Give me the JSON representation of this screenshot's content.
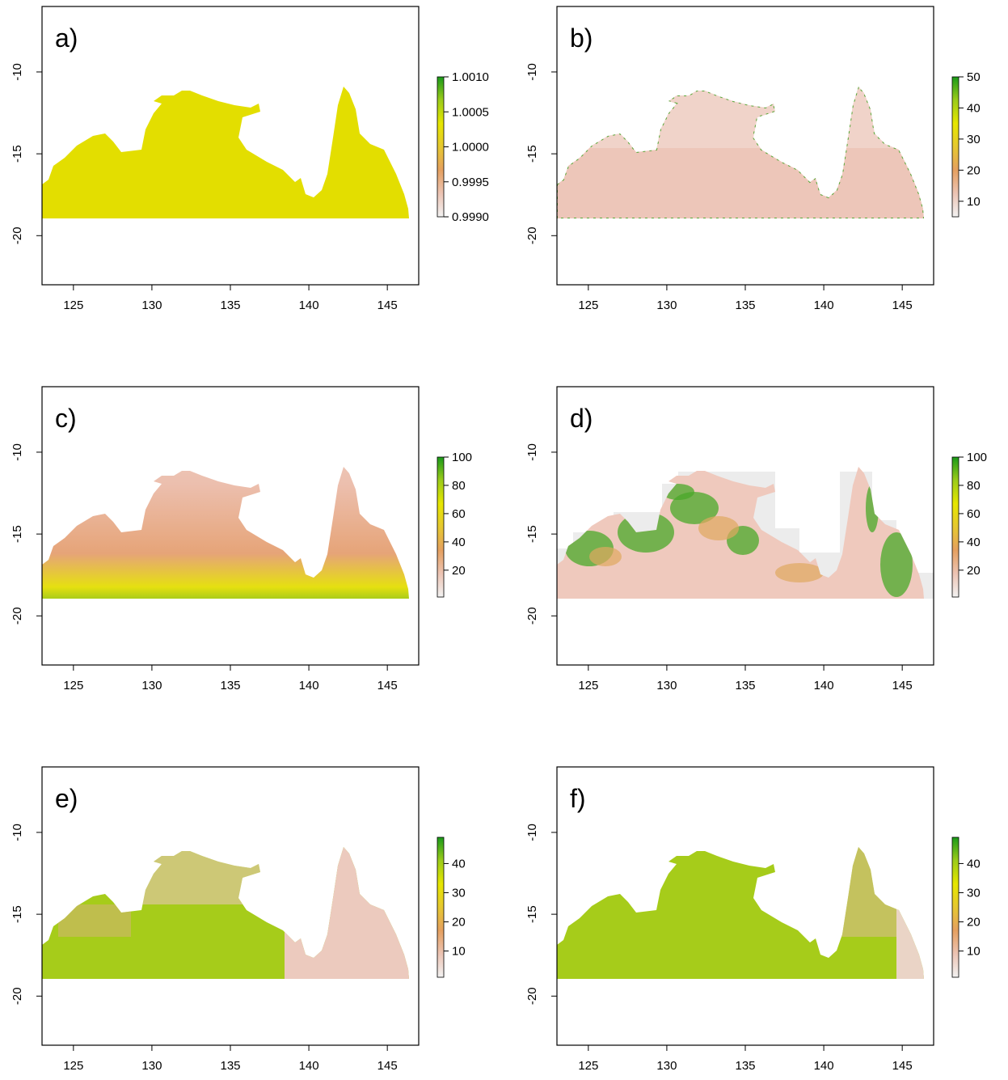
{
  "chart_data": [
    {
      "type": "map",
      "title": "a)",
      "xlim": [
        123,
        147
      ],
      "ylim": [
        -23,
        -6
      ],
      "xticks": [
        125,
        130,
        135,
        140,
        145
      ],
      "yticks": [
        -10,
        -15,
        -20
      ],
      "zlim": [
        0.999,
        1.001
      ],
      "zticks": [
        {
          "value": 0.999,
          "label": "0.9990"
        },
        {
          "value": 0.9995,
          "label": "0.9995"
        },
        {
          "value": 1,
          "label": "1.0000"
        },
        {
          "value": 1.0005,
          "label": "1.0005"
        },
        {
          "value": 1.001,
          "label": "1.0010"
        }
      ],
      "colors": [
        "#f2f2f2",
        "#ecc4b4",
        "#e5a060",
        "#e6c830",
        "#e6e600",
        "#9ccc1a",
        "#1a9a1a"
      ]
    },
    {
      "type": "map",
      "title": "b)",
      "xlim": [
        123,
        147
      ],
      "ylim": [
        -23,
        -6
      ],
      "xticks": [
        125,
        130,
        135,
        140,
        145
      ],
      "yticks": [
        -10,
        -15,
        -20
      ],
      "zlim": [
        5,
        50
      ],
      "zticks": [
        10,
        20,
        30,
        40,
        50
      ],
      "colors": [
        "#f2f2f2",
        "#ecc4b4",
        "#e5a060",
        "#e6c830",
        "#e6e600",
        "#9ccc1a",
        "#1a9a1a"
      ]
    },
    {
      "type": "map",
      "title": "c)",
      "xlim": [
        123,
        147
      ],
      "ylim": [
        -23,
        -6
      ],
      "xticks": [
        125,
        130,
        135,
        140,
        145
      ],
      "yticks": [
        -10,
        -15,
        -20
      ],
      "zlim": [
        1,
        100
      ],
      "zticks": [
        20,
        40,
        60,
        80,
        100
      ],
      "colors": [
        "#f2f2f2",
        "#ecc4b4",
        "#e5a060",
        "#e6c830",
        "#e6e600",
        "#9ccc1a",
        "#1a9a1a"
      ]
    },
    {
      "type": "map",
      "title": "d)",
      "xlim": [
        123,
        147
      ],
      "ylim": [
        -23,
        -6
      ],
      "xticks": [
        125,
        130,
        135,
        140,
        145
      ],
      "yticks": [
        -10,
        -15,
        -20
      ],
      "zlim": [
        1,
        100
      ],
      "zticks": [
        20,
        40,
        60,
        80,
        100
      ],
      "colors": [
        "#f2f2f2",
        "#ecc4b4",
        "#e5a060",
        "#e6c830",
        "#e6e600",
        "#9ccc1a",
        "#1a9a1a"
      ]
    },
    {
      "type": "map",
      "title": "e)",
      "xlim": [
        123,
        147
      ],
      "ylim": [
        -23,
        -6
      ],
      "xticks": [
        125,
        130,
        135,
        140,
        145
      ],
      "yticks": [
        -10,
        -15,
        -20
      ],
      "zlim": [
        1,
        49
      ],
      "zticks": [
        10,
        20,
        30,
        40
      ],
      "colors": [
        "#f2f2f2",
        "#ecc4b4",
        "#e5a060",
        "#e6c830",
        "#e6e600",
        "#9ccc1a",
        "#1a9a1a"
      ]
    },
    {
      "type": "map",
      "title": "f)",
      "xlim": [
        123,
        147
      ],
      "ylim": [
        -23,
        -6
      ],
      "xticks": [
        125,
        130,
        135,
        140,
        145
      ],
      "yticks": [
        -10,
        -15,
        -20
      ],
      "zlim": [
        1,
        49
      ],
      "zticks": [
        10,
        20,
        30,
        40
      ],
      "colors": [
        "#f2f2f2",
        "#ecc4b4",
        "#e5a060",
        "#e6c830",
        "#e6e600",
        "#9ccc1a",
        "#1a9a1a"
      ]
    }
  ]
}
